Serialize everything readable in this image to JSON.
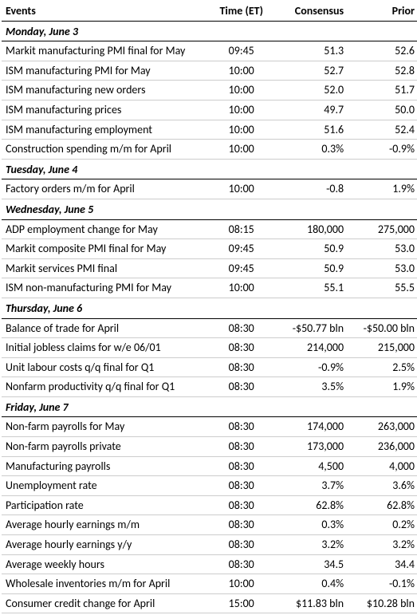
{
  "headers": {
    "events": "Events",
    "time": "Time (ET)",
    "consensus": "Consensus",
    "prior": "Prior"
  },
  "days": [
    {
      "label": "Monday, June 3",
      "rows": [
        {
          "event": "Markit manufacturing PMI final for May",
          "time": "09:45",
          "consensus": "51.3",
          "prior": "52.6"
        },
        {
          "event": "ISM manufacturing PMI for May",
          "time": "10:00",
          "consensus": "52.7",
          "prior": "52.8"
        },
        {
          "event": "ISM manufacturing new orders",
          "time": "10:00",
          "consensus": "52.0",
          "prior": "51.7"
        },
        {
          "event": "ISM manufacturing prices",
          "time": "10:00",
          "consensus": "49.7",
          "prior": "50.0"
        },
        {
          "event": "ISM manufacturing employment",
          "time": "10:00",
          "consensus": "51.6",
          "prior": "52.4"
        },
        {
          "event": "Construction spending m/m for April",
          "time": "10:00",
          "consensus": "0.3%",
          "prior": "-0.9%"
        }
      ]
    },
    {
      "label": "Tuesday, June 4",
      "rows": [
        {
          "event": "Factory orders m/m for April",
          "time": "10:00",
          "consensus": "-0.8",
          "prior": "1.9%"
        }
      ]
    },
    {
      "label": "Wednesday, June 5",
      "rows": [
        {
          "event": "ADP employment change for May",
          "time": "08:15",
          "consensus": "180,000",
          "prior": "275,000"
        },
        {
          "event": "Markit composite PMI final for May",
          "time": "09:45",
          "consensus": "50.9",
          "prior": "53.0"
        },
        {
          "event": "Markit services PMI final",
          "time": "09:45",
          "consensus": "50.9",
          "prior": "53.0"
        },
        {
          "event": "ISM non-manufacturing PMI for May",
          "time": "10:00",
          "consensus": "55.1",
          "prior": "55.5"
        }
      ]
    },
    {
      "label": "Thursday, June 6",
      "rows": [
        {
          "event": "Balance of trade for April",
          "time": "08:30",
          "consensus": "-$50.77 bln",
          "prior": "-$50.00 bln"
        },
        {
          "event": "Initial jobless claims for w/e 06/01",
          "time": "08:30",
          "consensus": "214,000",
          "prior": "215,000"
        },
        {
          "event": "Unit labour costs q/q final for Q1",
          "time": "08:30",
          "consensus": "-0.9%",
          "prior": "2.5%"
        },
        {
          "event": "Nonfarm productivity q/q final for Q1",
          "time": "08:30",
          "consensus": "3.5%",
          "prior": "1.9%"
        }
      ]
    },
    {
      "label": "Friday, June 7",
      "rows": [
        {
          "event": "Non-farm payrolls for May",
          "time": "08:30",
          "consensus": "174,000",
          "prior": "263,000"
        },
        {
          "event": "Non-farm payrolls private",
          "time": "08:30",
          "consensus": "173,000",
          "prior": "236,000"
        },
        {
          "event": "Manufacturing payrolls",
          "time": "08:30",
          "consensus": "4,500",
          "prior": "4,000"
        },
        {
          "event": "Unemployment rate",
          "time": "08:30",
          "consensus": "3.7%",
          "prior": "3.6%"
        },
        {
          "event": "Participation rate",
          "time": "08:30",
          "consensus": "62.8%",
          "prior": "62.8%"
        },
        {
          "event": "Average hourly earnings m/m",
          "time": "08:30",
          "consensus": "0.3%",
          "prior": "0.2%"
        },
        {
          "event": "Average hourly earnings y/y",
          "time": "08:30",
          "consensus": "3.2%",
          "prior": "3.2%"
        },
        {
          "event": "Average weekly hours",
          "time": "08:30",
          "consensus": "34.5",
          "prior": "34.4"
        },
        {
          "event": "Wholesale inventories m/m for April",
          "time": "10:00",
          "consensus": "0.4%",
          "prior": "-0.1%"
        },
        {
          "event": "Consumer credit change for April",
          "time": "15:00",
          "consensus": "$11.83 bln",
          "prior": "$10.28 bln"
        }
      ]
    }
  ]
}
